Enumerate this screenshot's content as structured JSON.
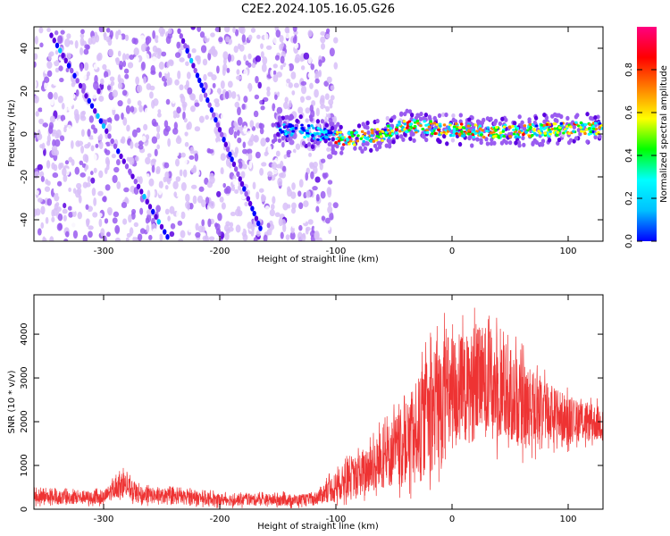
{
  "figure_title": "C2E2.2024.105.16.05.G26",
  "chart_data": [
    {
      "type": "heatmap",
      "xlabel": "Height of straight line (km)",
      "ylabel": "Frequency (Hz)",
      "xlim": [
        -360,
        130
      ],
      "ylim": [
        -50,
        50
      ],
      "x_ticks": [
        -300,
        -200,
        -100,
        0,
        100
      ],
      "y_ticks": [
        -40,
        -20,
        0,
        20,
        40
      ],
      "colorbar": {
        "label": "Normalized spectral amplitude",
        "range": [
          0.0,
          1.0
        ],
        "ticks": [
          0.0,
          0.2,
          0.4,
          0.6,
          0.8
        ],
        "colormap": [
          "#ffffff",
          "#d8c0f8",
          "#9a5cf0",
          "#5a00e0",
          "#0000ff",
          "#00c0ff",
          "#00ffff",
          "#00ff00",
          "#ffff00",
          "#ff8000",
          "#ff0000",
          "#ff0080"
        ]
      },
      "features": {
        "noise_region_x": [
          -360,
          -110
        ],
        "diagonal_streaks": [
          {
            "x": [
              -345,
              -245
            ],
            "y": [
              46,
              -48
            ]
          },
          {
            "x": [
              -235,
              -165
            ],
            "y": [
              48,
              -44
            ]
          }
        ],
        "carrier_line": [
          {
            "x": -155,
            "y": 2
          },
          {
            "x": -120,
            "y": 1
          },
          {
            "x": -100,
            "y": -2
          },
          {
            "x": -80,
            "y": -2
          },
          {
            "x": -60,
            "y": 0
          },
          {
            "x": -40,
            "y": 4
          },
          {
            "x": -20,
            "y": 3
          },
          {
            "x": 0,
            "y": 2
          },
          {
            "x": 40,
            "y": 1
          },
          {
            "x": 80,
            "y": 2
          },
          {
            "x": 130,
            "y": 3
          }
        ]
      }
    },
    {
      "type": "line",
      "xlabel": "Height of straight line (km)",
      "ylabel": "SNR (10 * v/v)",
      "xlim": [
        -360,
        130
      ],
      "ylim": [
        0,
        4900
      ],
      "x_ticks": [
        -300,
        -200,
        -100,
        0,
        100
      ],
      "y_ticks": [
        0,
        1000,
        2000,
        3000,
        4000
      ],
      "series_color": "#ee3333",
      "envelope": [
        {
          "x": -360,
          "low": 50,
          "high": 500
        },
        {
          "x": -300,
          "low": 40,
          "high": 480
        },
        {
          "x": -285,
          "low": 200,
          "high": 1000
        },
        {
          "x": -270,
          "low": 50,
          "high": 600
        },
        {
          "x": -200,
          "low": 20,
          "high": 420
        },
        {
          "x": -120,
          "low": 20,
          "high": 400
        },
        {
          "x": -100,
          "low": 50,
          "high": 1000
        },
        {
          "x": -70,
          "low": 100,
          "high": 1800
        },
        {
          "x": -40,
          "low": 200,
          "high": 2800
        },
        {
          "x": -10,
          "low": 300,
          "high": 4700
        },
        {
          "x": 10,
          "low": 900,
          "high": 4500
        },
        {
          "x": 30,
          "low": 1100,
          "high": 4800
        },
        {
          "x": 60,
          "low": 1000,
          "high": 3800
        },
        {
          "x": 100,
          "low": 1300,
          "high": 2800
        },
        {
          "x": 130,
          "low": 1400,
          "high": 2500
        }
      ]
    }
  ]
}
